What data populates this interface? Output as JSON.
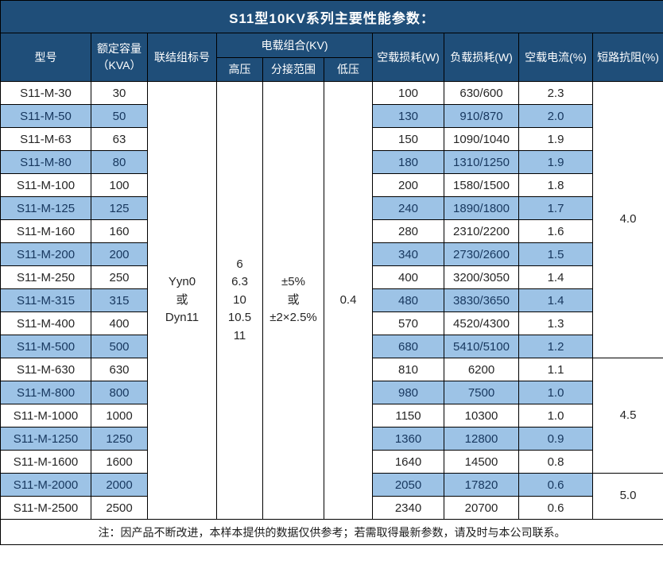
{
  "title": "S11型10KV系列主要性能参数：",
  "header": {
    "model": "型号",
    "capacity_line1": "额定容量",
    "capacity_line2": "（KVA）",
    "vector_group": "联结组标号",
    "voltage_combo": "电载组合(KV)",
    "hv": "高压",
    "tap_range": "分接范围",
    "lv": "低压",
    "no_load_loss": "空载损耗(W)",
    "load_loss": "负载损耗(W)",
    "no_load_current": "空载电流(%)",
    "impedance": "短路抗阻(%)"
  },
  "merged": {
    "vector_group_lines": [
      "Yyn0",
      "或",
      "Dyn11"
    ],
    "hv_lines": [
      "6",
      "6.3",
      "10",
      "10.5",
      "11"
    ],
    "tap_range_lines": [
      "±5%",
      "或",
      "±2×2.5%"
    ],
    "lv": "0.4"
  },
  "rows": [
    {
      "model": "S11-M-30",
      "capacity": "30",
      "no_load_loss": "100",
      "load_loss": "630/600",
      "no_load_current": "2.3"
    },
    {
      "model": "S11-M-50",
      "capacity": "50",
      "no_load_loss": "130",
      "load_loss": "910/870",
      "no_load_current": "2.0"
    },
    {
      "model": "S11-M-63",
      "capacity": "63",
      "no_load_loss": "150",
      "load_loss": "1090/1040",
      "no_load_current": "1.9"
    },
    {
      "model": "S11-M-80",
      "capacity": "80",
      "no_load_loss": "180",
      "load_loss": "1310/1250",
      "no_load_current": "1.9"
    },
    {
      "model": "S11-M-100",
      "capacity": "100",
      "no_load_loss": "200",
      "load_loss": "1580/1500",
      "no_load_current": "1.8"
    },
    {
      "model": "S11-M-125",
      "capacity": "125",
      "no_load_loss": "240",
      "load_loss": "1890/1800",
      "no_load_current": "1.7"
    },
    {
      "model": "S11-M-160",
      "capacity": "160",
      "no_load_loss": "280",
      "load_loss": "2310/2200",
      "no_load_current": "1.6"
    },
    {
      "model": "S11-M-200",
      "capacity": "200",
      "no_load_loss": "340",
      "load_loss": "2730/2600",
      "no_load_current": "1.5"
    },
    {
      "model": "S11-M-250",
      "capacity": "250",
      "no_load_loss": "400",
      "load_loss": "3200/3050",
      "no_load_current": "1.4"
    },
    {
      "model": "S11-M-315",
      "capacity": "315",
      "no_load_loss": "480",
      "load_loss": "3830/3650",
      "no_load_current": "1.4"
    },
    {
      "model": "S11-M-400",
      "capacity": "400",
      "no_load_loss": "570",
      "load_loss": "4520/4300",
      "no_load_current": "1.3"
    },
    {
      "model": "S11-M-500",
      "capacity": "500",
      "no_load_loss": "680",
      "load_loss": "5410/5100",
      "no_load_current": "1.2"
    },
    {
      "model": "S11-M-630",
      "capacity": "630",
      "no_load_loss": "810",
      "load_loss": "6200",
      "no_load_current": "1.1"
    },
    {
      "model": "S11-M-800",
      "capacity": "800",
      "no_load_loss": "980",
      "load_loss": "7500",
      "no_load_current": "1.0"
    },
    {
      "model": "S11-M-1000",
      "capacity": "1000",
      "no_load_loss": "1150",
      "load_loss": "10300",
      "no_load_current": "1.0"
    },
    {
      "model": "S11-M-1250",
      "capacity": "1250",
      "no_load_loss": "1360",
      "load_loss": "12800",
      "no_load_current": "0.9"
    },
    {
      "model": "S11-M-1600",
      "capacity": "1600",
      "no_load_loss": "1640",
      "load_loss": "14500",
      "no_load_current": "0.8"
    },
    {
      "model": "S11-M-2000",
      "capacity": "2000",
      "no_load_loss": "2050",
      "load_loss": "17820",
      "no_load_current": "0.6"
    },
    {
      "model": "S11-M-2500",
      "capacity": "2500",
      "no_load_loss": "2340",
      "load_loss": "20700",
      "no_load_current": "0.6"
    }
  ],
  "impedance_groups": [
    {
      "value": "4.0",
      "start": 0,
      "span": 12
    },
    {
      "value": "4.5",
      "start": 12,
      "span": 5
    },
    {
      "value": "5.0",
      "start": 17,
      "span": 2
    }
  ],
  "footer": "注：因产品不断改进，本样本提供的数据仅供参考；若需取得最新参数，请及时与本公司联系。",
  "colors": {
    "header_bg": "#1F4E79",
    "header_text": "#FFFFFF",
    "alt_row_bg": "#9DC3E6",
    "alt_row_text": "#17375E",
    "row_bg": "#FFFFFF",
    "row_text": "#262626",
    "border": "#000000"
  }
}
